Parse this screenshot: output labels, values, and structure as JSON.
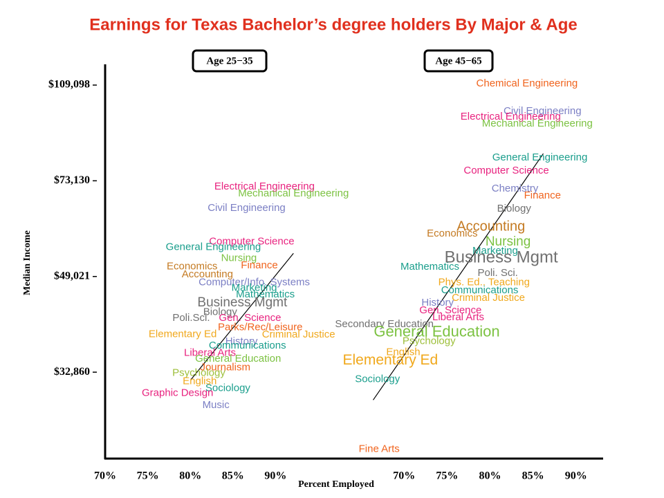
{
  "chart_data": {
    "type": "scatter",
    "title": "Earnings for Texas Bachelor’s degree holders By Major & Age",
    "xlabel": "Percent Employed",
    "ylabel": "Median Income",
    "ylog": true,
    "ylim": [
      22900,
      118300
    ],
    "yticks": [
      {
        "value": 109098,
        "label": "$109,098"
      },
      {
        "value": 73130,
        "label": "$73,130"
      },
      {
        "value": 49021,
        "label": "$49,021"
      },
      {
        "value": 32860,
        "label": "$32,860"
      }
    ],
    "panels": [
      {
        "name": "Age 25−35",
        "xlim": [
          70,
          95
        ],
        "xticks": [
          {
            "value": 70,
            "label": "70%"
          },
          {
            "value": 75,
            "label": "75%"
          },
          {
            "value": 80,
            "label": "80%"
          },
          {
            "value": 85,
            "label": "85%"
          },
          {
            "value": 90,
            "label": "90%"
          }
        ],
        "labels": [
          "Electrical Engineering",
          "Mechanical Engineering",
          "Civil Engineering",
          "Computer Science",
          "General Engineering",
          "Nursing",
          "Economics",
          "Finance",
          "Accounting",
          "Computer/Info. Systems",
          "Marketing",
          "Mathematics",
          "Business Mgmt",
          "Biology",
          "Poli.Sci.",
          "Gen. Science",
          "Parks/Rec/Leisure",
          "Elementary Ed",
          "Criminal Justice",
          "History",
          "Communications",
          "Liberal Arts",
          "General Education",
          "Journalism",
          "Psychology",
          "English",
          "Sociology",
          "Graphic Design",
          "Music"
        ],
        "x": [
          88.7,
          92.1,
          86.6,
          87.2,
          82.7,
          85.7,
          80.2,
          88.1,
          82.0,
          87.5,
          87.5,
          88.8,
          86.1,
          83.5,
          80.1,
          87.0,
          88.2,
          79.1,
          92.7,
          86.0,
          86.7,
          82.3,
          85.6,
          84.1,
          81.0,
          81.1,
          84.4,
          78.5,
          83.0
        ],
        "y": [
          71300,
          69300,
          65200,
          56700,
          55400,
          52900,
          51100,
          51300,
          49400,
          47800,
          46700,
          45400,
          43900,
          42200,
          41200,
          41200,
          39600,
          38500,
          38400,
          37300,
          36700,
          35600,
          34700,
          33500,
          32700,
          31600,
          30700,
          30100,
          28600
        ],
        "colors": [
          "#e8237f",
          "#7cc242",
          "#7b7fc4",
          "#e8237f",
          "#1a9e8c",
          "#7cc242",
          "#c47a22",
          "#f0641e",
          "#c47a22",
          "#7b7fc4",
          "#1a9e8c",
          "#1a9e8c",
          "#707070",
          "#707070",
          "#707070",
          "#e8237f",
          "#f0641e",
          "#f0a81c",
          "#f0a81c",
          "#7b7fc4",
          "#1a9e8c",
          "#e8237f",
          "#7cc242",
          "#f0641e",
          "#9dbf3a",
          "#f0a81c",
          "#1a9e8c",
          "#e8237f",
          "#7b7fc4"
        ],
        "trend": {
          "x": [
            80.1,
            92.1
          ],
          "y": [
            31900,
            54000
          ]
        }
      },
      {
        "name": "Age 45−65",
        "xlim": [
          60,
          93
        ],
        "xticks": [
          {
            "value": 70,
            "label": "70%"
          },
          {
            "value": 75,
            "label": "75%"
          },
          {
            "value": 80,
            "label": "80%"
          },
          {
            "value": 85,
            "label": "85%"
          },
          {
            "value": 90,
            "label": "90%"
          }
        ],
        "labels": [
          "Chemical Engineering",
          "Civil Engineering",
          "Electrical Engineering",
          "Mechanical Engineering",
          "General Engineering",
          "Computer Science",
          "Chemistry",
          "Finance",
          "Biology",
          "Accounting",
          "Economics",
          "Nursing",
          "Marketing",
          "Business Mgmt",
          "Mathematics",
          "Poli. Sci.",
          "Phys. Ed.. Teaching",
          "Communications",
          "Criminal Justice",
          "History",
          "Gen. Science",
          "Liberal Arts",
          "Secondary Education",
          "General Education",
          "Psychology",
          "English",
          "Elementary Ed",
          "Sociology",
          "Fine Arts"
        ],
        "x": [
          84.3,
          86.1,
          82.4,
          85.5,
          85.8,
          81.9,
          82.9,
          86.1,
          82.8,
          80.1,
          75.6,
          82.1,
          80.6,
          81.3,
          73.0,
          80.9,
          79.3,
          78.8,
          79.8,
          73.9,
          75.4,
          76.3,
          67.7,
          73.8,
          72.9,
          69.9,
          68.4,
          66.9,
          67.1
        ],
        "y": [
          109700,
          97700,
          95500,
          92800,
          80500,
          76200,
          70700,
          68700,
          65000,
          60300,
          58600,
          56600,
          54500,
          52900,
          51000,
          49700,
          47800,
          46200,
          44800,
          43900,
          42500,
          41300,
          40100,
          38800,
          37400,
          35700,
          34500,
          31900,
          23800
        ],
        "colors": [
          "#f0641e",
          "#7b7fc4",
          "#e8237f",
          "#7cc242",
          "#1a9e8c",
          "#e8237f",
          "#7b7fc4",
          "#f0641e",
          "#707070",
          "#c47a22",
          "#c47a22",
          "#7cc242",
          "#1a9e8c",
          "#707070",
          "#1a9e8c",
          "#707070",
          "#f0a81c",
          "#1a9e8c",
          "#f0a81c",
          "#7b7fc4",
          "#e8237f",
          "#e8237f",
          "#707070",
          "#7cc242",
          "#9dbf3a",
          "#f0a81c",
          "#f0a81c",
          "#1a9e8c",
          "#f0641e"
        ],
        "trend": {
          "x": [
            66.4,
            86.2
          ],
          "y": [
            29250,
            81930
          ]
        }
      }
    ]
  }
}
